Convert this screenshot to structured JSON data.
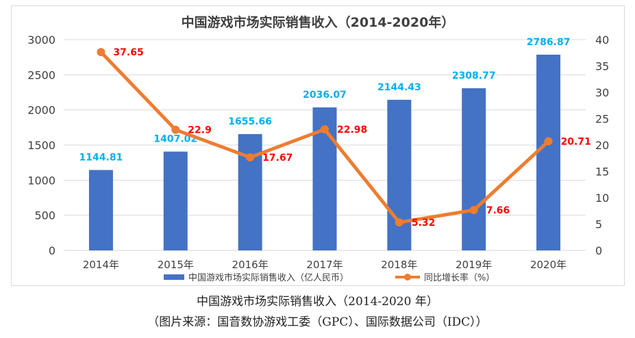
{
  "chart_data": {
    "type": "bar",
    "title": "中国游戏市场实际销售收入（2014-2020年）",
    "categories": [
      "2014年",
      "2015年",
      "2016年",
      "2017年",
      "2018年",
      "2019年",
      "2020年"
    ],
    "series": [
      {
        "name": "中国游戏市场实际销售收入（亿人民币）",
        "type": "bar",
        "axis": "left",
        "color": "#4472c4",
        "values": [
          1144.81,
          1407.02,
          1655.66,
          2036.07,
          2144.43,
          2308.77,
          2786.87
        ],
        "labels": [
          "1144.81",
          "1407.02",
          "1655.66",
          "2036.07",
          "2144.43",
          "2308.77",
          "2786.87"
        ],
        "label_color": "#00b0f0"
      },
      {
        "name": "同比增长率（%）",
        "type": "line",
        "axis": "right",
        "color": "#ed7d31",
        "values": [
          37.65,
          22.9,
          17.67,
          22.98,
          5.32,
          7.66,
          20.71
        ],
        "labels": [
          "37.65",
          "22.9",
          "17.67",
          "22.98",
          "5.32",
          "7.66",
          "20.71"
        ],
        "label_color": "#ff0000"
      }
    ],
    "y_left": {
      "min": 0,
      "max": 3000,
      "ticks": [
        "0",
        "500",
        "1000",
        "1500",
        "2000",
        "2500",
        "3000"
      ]
    },
    "y_right": {
      "min": 0,
      "max": 40,
      "ticks": [
        "0",
        "5",
        "10",
        "15",
        "20",
        "25",
        "30",
        "35",
        "40"
      ]
    },
    "grid": true,
    "legend": "bottom"
  },
  "caption": {
    "line1": "中国游戏市场实际销售收入（2014-2020 年）",
    "line2": "（图片来源：国音数协游戏工委（GPC）、国际数据公司（IDC））"
  }
}
